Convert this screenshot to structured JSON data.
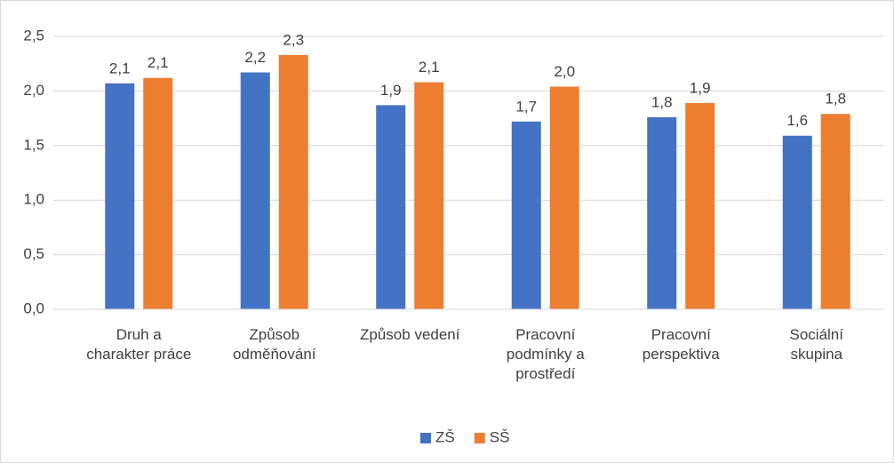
{
  "chart_data": {
    "type": "bar",
    "categories": [
      "Druh a charakter práce",
      "Způsob odměňování",
      "Způsob vedení",
      "Pracovní podmínky a prostředí",
      "Pracovní perspektiva",
      "Sociální skupina"
    ],
    "series": [
      {
        "name": "ZŠ",
        "color": "#4472c4",
        "values": [
          2.07,
          2.17,
          1.87,
          1.72,
          1.76,
          1.59
        ],
        "value_labels": [
          "2,1",
          "2,2",
          "1,9",
          "1,7",
          "1,8",
          "1,6"
        ]
      },
      {
        "name": "SŠ",
        "color": "#ed7d31",
        "values": [
          2.12,
          2.33,
          2.08,
          2.04,
          1.89,
          1.79
        ],
        "value_labels": [
          "2,1",
          "2,3",
          "2,1",
          "2,0",
          "1,9",
          "1,8"
        ]
      }
    ],
    "ylim": [
      0,
      2.5
    ],
    "yticks": [
      {
        "value": 0,
        "label": "0,0"
      },
      {
        "value": 0.5,
        "label": "0,5"
      },
      {
        "value": 1,
        "label": "1,0"
      },
      {
        "value": 1.5,
        "label": "1,5"
      },
      {
        "value": 2,
        "label": "2,0"
      },
      {
        "value": 2.5,
        "label": "2,5"
      }
    ],
    "grid": true,
    "legend": "bottom"
  }
}
